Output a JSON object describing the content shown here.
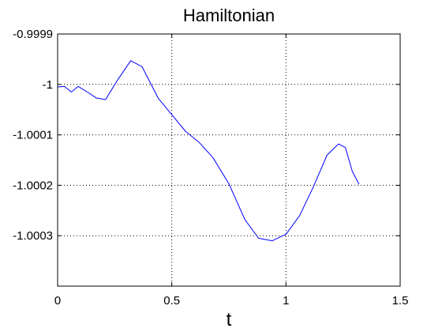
{
  "chart_data": {
    "type": "line",
    "title": "Hamiltonian",
    "xlabel": "t",
    "ylabel": "",
    "xlim": [
      0,
      1.5
    ],
    "ylim": [
      -1.0004,
      -0.9999
    ],
    "grid": true,
    "x_ticks": [
      {
        "value": 0,
        "label": "0"
      },
      {
        "value": 0.5,
        "label": "0.5"
      },
      {
        "value": 1,
        "label": "1"
      },
      {
        "value": 1.5,
        "label": "1.5"
      }
    ],
    "y_ticks": [
      {
        "value": -0.9999,
        "label": "-0.9999"
      },
      {
        "value": -1.0,
        "label": "-1"
      },
      {
        "value": -1.0001,
        "label": "-1.0001"
      },
      {
        "value": -1.0002,
        "label": "-1.0002"
      },
      {
        "value": -1.0003,
        "label": "-1.0003"
      }
    ],
    "series": [
      {
        "color": "#0000ff",
        "x": [
          0,
          0.03,
          0.06,
          0.09,
          0.13,
          0.17,
          0.21,
          0.26,
          0.32,
          0.37,
          0.44,
          0.5,
          0.56,
          0.62,
          0.68,
          0.75,
          0.82,
          0.88,
          0.94,
          1.0,
          1.06,
          1.12,
          1.18,
          1.23,
          1.26,
          1.29,
          1.32
        ],
        "y": [
          -1.000005,
          -1.000004,
          -1.000015,
          -1.000004,
          -1.000015,
          -1.000027,
          -1.00003,
          -0.999993,
          -0.999953,
          -0.999965,
          -1.000027,
          -1.00006,
          -1.000093,
          -1.000115,
          -1.000145,
          -1.000197,
          -1.000268,
          -1.000305,
          -1.00031,
          -1.000297,
          -1.00026,
          -1.000203,
          -1.00014,
          -1.000118,
          -1.000125,
          -1.000172,
          -1.000198
        ]
      }
    ]
  }
}
